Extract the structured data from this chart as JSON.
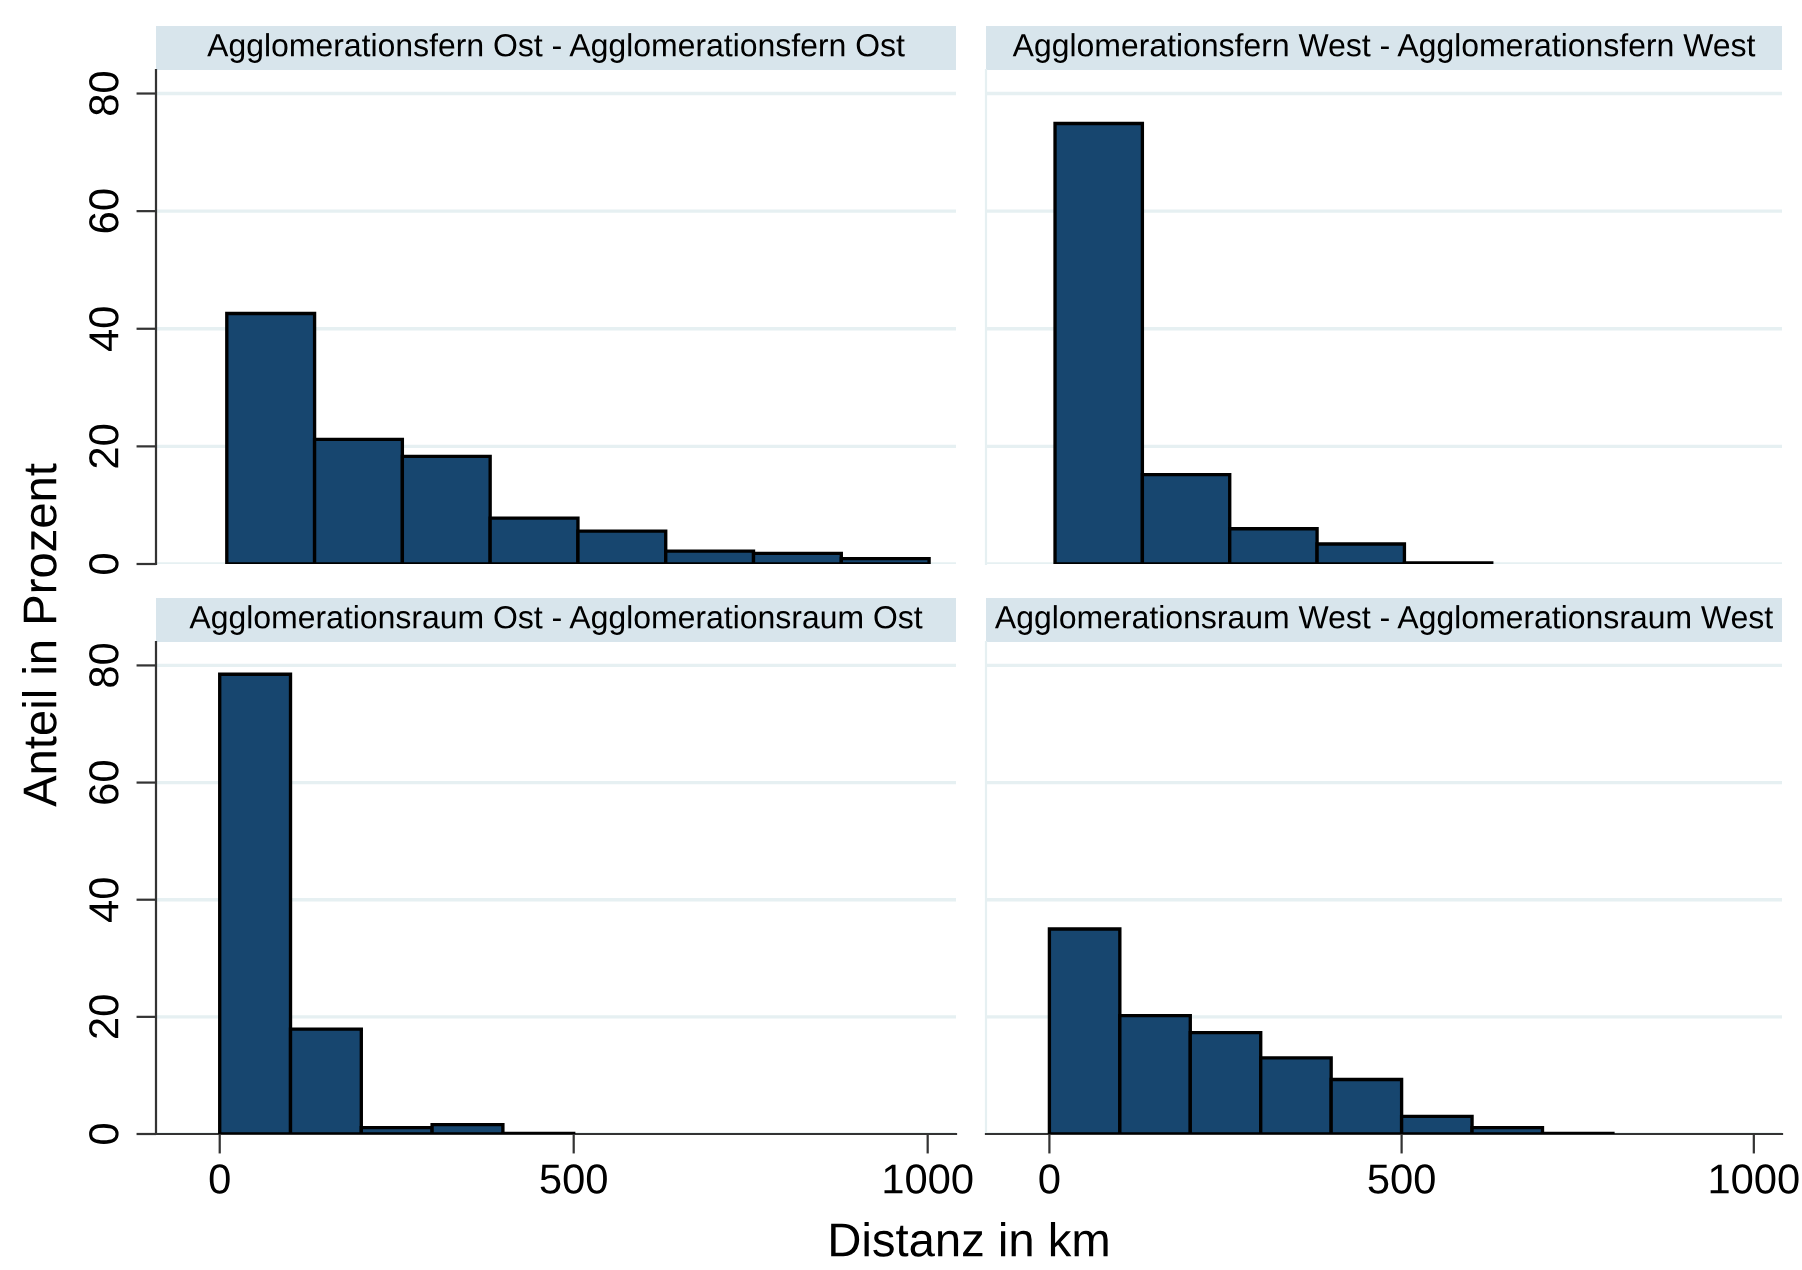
{
  "chart_data": [
    {
      "type": "histogram",
      "title": "Agglomerationsfern Ost - Agglomerationsfern Ost",
      "ylabel": "Anteil in Prozent",
      "bins": [
        10,
        134,
        258,
        382,
        506,
        630,
        754,
        878,
        1002
      ],
      "values": [
        42.6,
        21.2,
        18.3,
        7.8,
        5.6,
        2.2,
        1.8,
        0.9
      ],
      "color": "#17466f",
      "xlim": [
        -90,
        1040
      ],
      "ylim": [
        0,
        84
      ],
      "yticks": [
        0,
        20,
        40,
        60,
        80
      ],
      "xticks": [
        0,
        500,
        1000
      ],
      "grid": "y",
      "tick_labels": "y"
    },
    {
      "type": "histogram",
      "title": "Agglomerationsfern West - Agglomerationsfern West",
      "bins": [
        8,
        132,
        256,
        380,
        504,
        628
      ],
      "values": [
        74.9,
        15.2,
        6.0,
        3.4,
        0.2
      ],
      "color": "#17466f",
      "xlim": [
        -90,
        1040
      ],
      "ylim": [
        0,
        84
      ],
      "yticks": [
        0,
        20,
        40,
        60,
        80
      ],
      "xticks": [
        0,
        500,
        1000
      ],
      "grid": "y",
      "tick_labels": false
    },
    {
      "type": "histogram",
      "title": "Agglomerationsraum Ost - Agglomerationsraum Ost",
      "bins": [
        0,
        100,
        200,
        300,
        400,
        500
      ],
      "values": [
        78.5,
        17.9,
        1.1,
        1.6,
        0.1
      ],
      "color": "#17466f",
      "xlim": [
        -90,
        1040
      ],
      "ylim": [
        0,
        84
      ],
      "yticks": [
        0,
        20,
        40,
        60,
        80
      ],
      "xticks": [
        0,
        500,
        1000
      ],
      "grid": "y"
    },
    {
      "type": "histogram",
      "title": "Agglomerationsraum West - Agglomerationsraum West",
      "xlabel": "Distanz in km",
      "bins": [
        0,
        100,
        200,
        300,
        400,
        500,
        600,
        700,
        800
      ],
      "values": [
        35.0,
        20.2,
        17.3,
        13.0,
        9.3,
        3.0,
        1.1,
        0.1
      ],
      "color": "#17466f",
      "xlim": [
        -90,
        1040
      ],
      "ylim": [
        0,
        84
      ],
      "yticks": [
        0,
        20,
        40,
        60,
        80
      ],
      "xticks": [
        0,
        500,
        1000
      ],
      "grid": "y",
      "tick_labels": "x"
    }
  ]
}
